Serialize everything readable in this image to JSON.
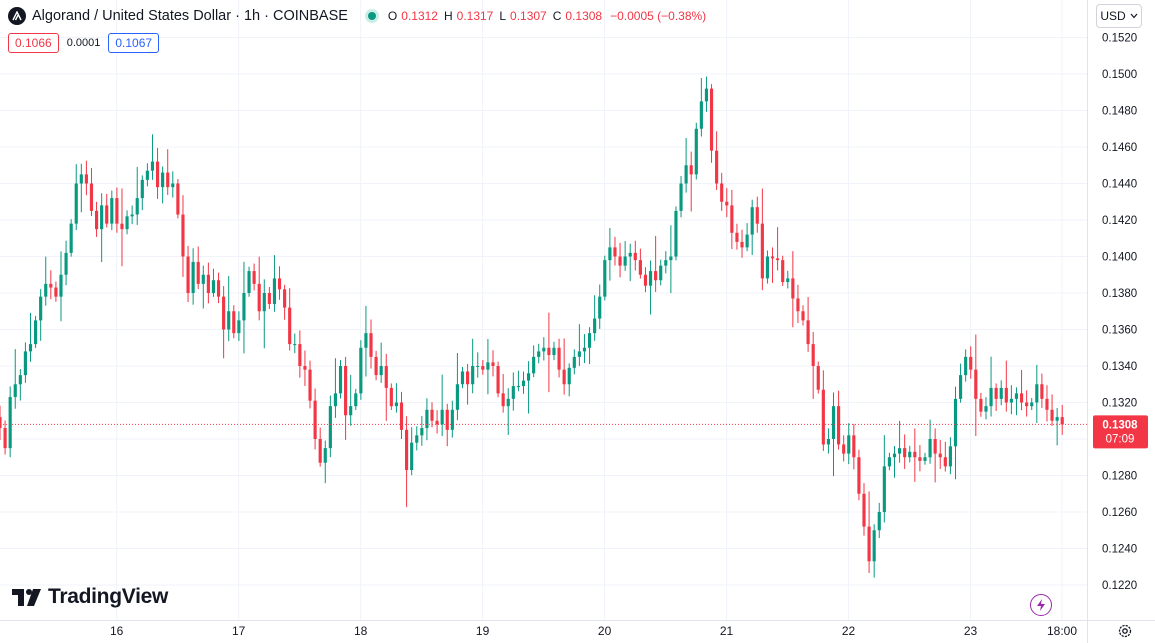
{
  "header": {
    "title": "Algorand / United States Dollar · 1h · COINBASE",
    "ohlc": [
      {
        "key": "O",
        "value": "0.1312"
      },
      {
        "key": "H",
        "value": "0.1317"
      },
      {
        "key": "L",
        "value": "0.1307"
      },
      {
        "key": "C",
        "value": "0.1308"
      }
    ],
    "change": "−0.0005 (−0.38%)",
    "status_color": "#089981"
  },
  "prices": {
    "sell": "0.1066",
    "spread": "0.0001",
    "buy": "0.1067"
  },
  "currency": "USD",
  "logo_text": "TradingView",
  "last_price": {
    "value": "0.1308",
    "countdown": "07:09",
    "color": "#f23645"
  },
  "colors": {
    "up": "#089981",
    "down": "#f23645",
    "grid": "#f0f3fa"
  },
  "icons": [
    "algorand-icon",
    "chevron-down-icon",
    "tradingview-logo-icon",
    "lightning-icon",
    "gear-icon"
  ],
  "chart_data": {
    "type": "candlestick",
    "ylim": [
      0.121,
      0.1525
    ],
    "y_ticks": [
      "0.1520",
      "0.1500",
      "0.1480",
      "0.1460",
      "0.1440",
      "0.1420",
      "0.1400",
      "0.1380",
      "0.1360",
      "0.1340",
      "0.1320",
      "0.1300",
      "0.1280",
      "0.1260",
      "0.1240",
      "0.1220"
    ],
    "x_ticks": [
      {
        "label": "16",
        "x": 16
      },
      {
        "label": "17",
        "x": 17
      },
      {
        "label": "18",
        "x": 18
      },
      {
        "label": "19",
        "x": 19
      },
      {
        "label": "20",
        "x": 20
      },
      {
        "label": "21",
        "x": 21
      },
      {
        "label": "22",
        "x": 22
      },
      {
        "label": "23",
        "x": 23
      },
      {
        "label": "18:00",
        "x": 23.75
      }
    ],
    "x_range": [
      15.0435,
      23.955
    ],
    "start_day": 15.0435,
    "step_hours": 1,
    "closes": [
      0.1306,
      0.1295,
      0.1323,
      0.133,
      0.1335,
      0.1348,
      0.1352,
      0.1365,
      0.1378,
      0.1385,
      0.1383,
      0.1378,
      0.139,
      0.1402,
      0.1418,
      0.144,
      0.1445,
      0.144,
      0.1425,
      0.1415,
      0.1428,
      0.1418,
      0.1432,
      0.1418,
      0.1415,
      0.1422,
      0.1423,
      0.1432,
      0.1442,
      0.1447,
      0.1452,
      0.1438,
      0.1446,
      0.1438,
      0.144,
      0.1423,
      0.14,
      0.138,
      0.1397,
      0.1385,
      0.139,
      0.138,
      0.1387,
      0.1378,
      0.136,
      0.137,
      0.1358,
      0.1365,
      0.138,
      0.1392,
      0.1385,
      0.137,
      0.138,
      0.1374,
      0.1388,
      0.1382,
      0.1372,
      0.1352,
      0.1352,
      0.134,
      0.1338,
      0.1321,
      0.13,
      0.1287,
      0.1295,
      0.1318,
      0.1325,
      0.134,
      0.1313,
      0.1318,
      0.1325,
      0.135,
      0.1358,
      0.1345,
      0.1335,
      0.134,
      0.1328,
      0.1318,
      0.132,
      0.1305,
      0.1283,
      0.1298,
      0.1302,
      0.1306,
      0.1316,
      0.131,
      0.1308,
      0.1316,
      0.1305,
      0.1316,
      0.133,
      0.1337,
      0.133,
      0.134,
      0.134,
      0.1338,
      0.1342,
      0.134,
      0.1325,
      0.1318,
      0.1322,
      0.1329,
      0.1329,
      0.1332,
      0.1336,
      0.1345,
      0.1348,
      0.135,
      0.1346,
      0.135,
      0.1338,
      0.133,
      0.1339,
      0.1345,
      0.1348,
      0.135,
      0.1358,
      0.1366,
      0.1378,
      0.1398,
      0.1405,
      0.14,
      0.1395,
      0.14,
      0.1402,
      0.1398,
      0.139,
      0.1384,
      0.1392,
      0.1387,
      0.1395,
      0.1398,
      0.14,
      0.1425,
      0.144,
      0.145,
      0.1445,
      0.147,
      0.1485,
      0.1492,
      0.1458,
      0.144,
      0.143,
      0.1428,
      0.1413,
      0.1408,
      0.1405,
      0.1412,
      0.1427,
      0.1418,
      0.1388,
      0.14,
      0.1399,
      0.1398,
      0.1386,
      0.1388,
      0.1377,
      0.137,
      0.1365,
      0.1352,
      0.134,
      0.1327,
      0.1297,
      0.13,
      0.1318,
      0.1297,
      0.1292,
      0.1302,
      0.129,
      0.127,
      0.1252,
      0.1233,
      0.125,
      0.126,
      0.1285,
      0.129,
      0.1292,
      0.1295,
      0.129,
      0.1293,
      0.129,
      0.1288,
      0.129,
      0.13,
      0.1292,
      0.129,
      0.1285,
      0.1296,
      0.1322,
      0.1335,
      0.1345,
      0.1338,
      0.1322,
      0.1315,
      0.1318,
      0.1328,
      0.1322,
      0.1328,
      0.132,
      0.1322,
      0.1325,
      0.132,
      0.1318,
      0.132,
      0.133,
      0.1322,
      0.1316,
      0.131,
      0.1312,
      0.1308
    ]
  }
}
